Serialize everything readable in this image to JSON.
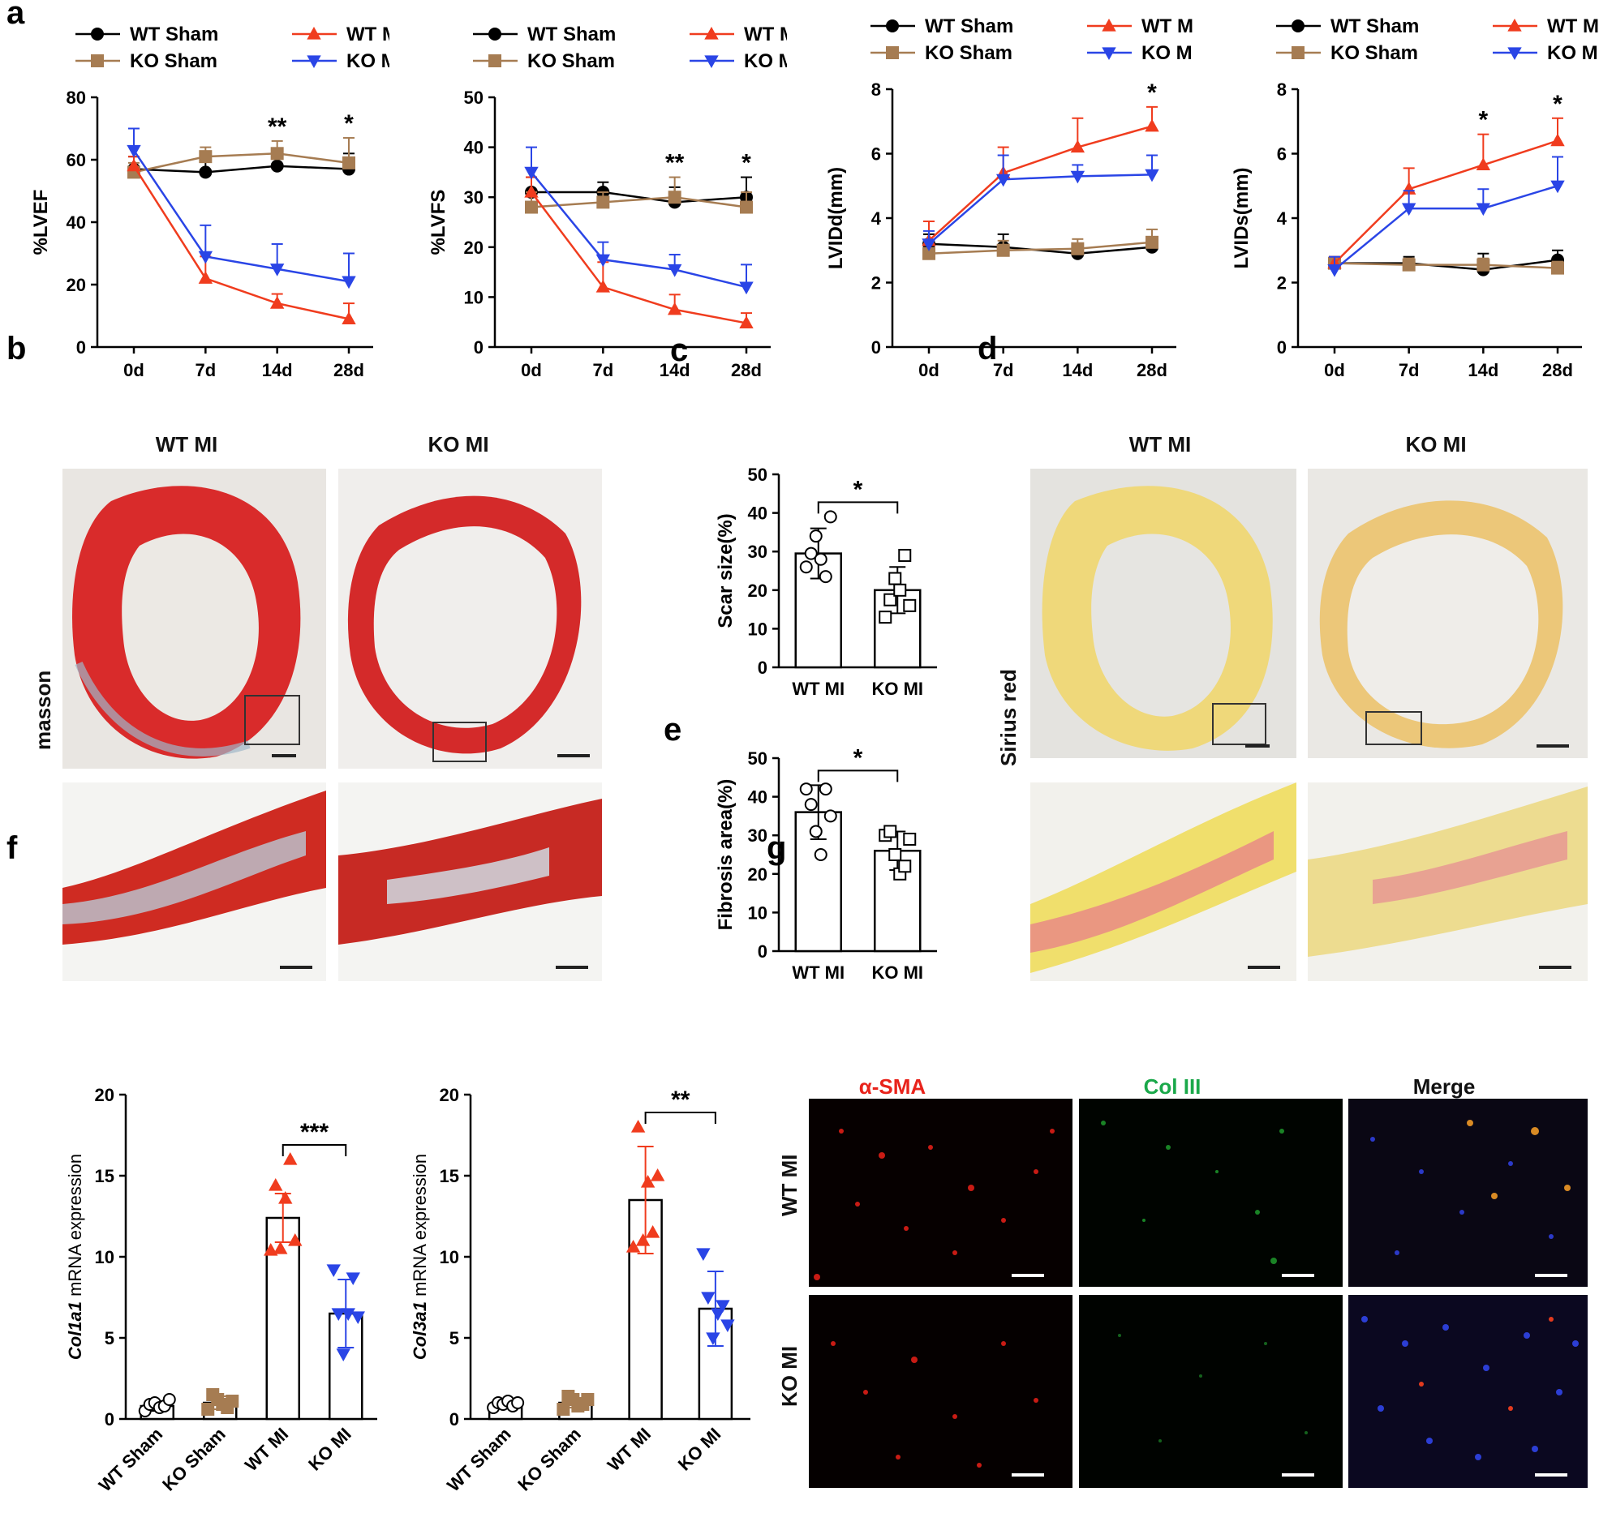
{
  "panel_labels": {
    "a": "a",
    "b": "b",
    "c": "c",
    "d": "d",
    "e": "e",
    "f": "f",
    "g": "g"
  },
  "legend": {
    "wt_sham": "WT Sham",
    "ko_sham": "KO Sham",
    "wt_mi": "WT MI",
    "ko_mi": "KO MI"
  },
  "colors": {
    "wt_sham": "#000000",
    "ko_sham": "#a67c52",
    "wt_mi": "#f03c1e",
    "ko_mi": "#2a45e6",
    "alpha_sma": "#e8231b",
    "col3": "#1aa84a"
  },
  "panel_b": {
    "col1": "WT MI",
    "col2": "KO MI",
    "row_label": "masson"
  },
  "panel_d": {
    "col1": "WT MI",
    "col2": "KO MI",
    "row_label": "Sirius red"
  },
  "panel_g": {
    "col1": "α-SMA",
    "col2": "Col III",
    "col3": "Merge",
    "row1": "WT MI",
    "row2": "KO MI"
  },
  "chart_data": [
    {
      "id": "lvef",
      "type": "line",
      "ylabel": "%LVEF",
      "ylim": [
        0,
        80
      ],
      "yticks": [
        0,
        20,
        40,
        60,
        80
      ],
      "categories": [
        "0d",
        "7d",
        "14d",
        "28d"
      ],
      "series": [
        {
          "name": "WT Sham",
          "values": [
            57,
            56,
            58,
            57
          ],
          "errors": [
            4,
            4,
            5,
            5
          ]
        },
        {
          "name": "KO Sham",
          "values": [
            56,
            61,
            62,
            59
          ],
          "errors": [
            3,
            3,
            4,
            8
          ]
        },
        {
          "name": "WT MI",
          "values": [
            58,
            22,
            14,
            9
          ],
          "errors": [
            3,
            7,
            3,
            5
          ]
        },
        {
          "name": "KO MI",
          "values": [
            63,
            29,
            25,
            21
          ],
          "errors": [
            7,
            10,
            8,
            9
          ]
        }
      ],
      "annotations": [
        {
          "x": "14d",
          "text": "**"
        },
        {
          "x": "28d",
          "text": "*"
        }
      ]
    },
    {
      "id": "lvfs",
      "type": "line",
      "ylabel": "%LVFS",
      "ylim": [
        0,
        50
      ],
      "yticks": [
        0,
        10,
        20,
        30,
        40,
        50
      ],
      "categories": [
        "0d",
        "7d",
        "14d",
        "28d"
      ],
      "series": [
        {
          "name": "WT Sham",
          "values": [
            31,
            31,
            29,
            30
          ],
          "errors": [
            3,
            2,
            3,
            4
          ]
        },
        {
          "name": "KO Sham",
          "values": [
            28,
            29,
            30,
            28
          ],
          "errors": [
            3,
            2,
            4,
            3
          ]
        },
        {
          "name": "WT MI",
          "values": [
            31,
            12,
            7.5,
            4.8
          ],
          "errors": [
            3,
            5,
            3,
            2
          ]
        },
        {
          "name": "KO MI",
          "values": [
            35,
            17.5,
            15.5,
            12
          ],
          "errors": [
            5,
            3.5,
            3,
            4.5
          ]
        }
      ],
      "annotations": [
        {
          "x": "14d",
          "text": "**"
        },
        {
          "x": "28d",
          "text": "*"
        }
      ]
    },
    {
      "id": "lvidd",
      "type": "line",
      "ylabel": "LVIDd(mm)",
      "ylim": [
        0,
        8
      ],
      "yticks": [
        0,
        2,
        4,
        6,
        8
      ],
      "categories": [
        "0d",
        "7d",
        "14d",
        "28d"
      ],
      "series": [
        {
          "name": "WT Sham",
          "values": [
            3.2,
            3.1,
            2.9,
            3.1
          ],
          "errors": [
            0.3,
            0.4,
            0.3,
            0.3
          ]
        },
        {
          "name": "KO Sham",
          "values": [
            2.9,
            3.0,
            3.05,
            3.25
          ],
          "errors": [
            0.3,
            0.3,
            0.3,
            0.4
          ]
        },
        {
          "name": "WT MI",
          "values": [
            3.3,
            5.4,
            6.2,
            6.85
          ],
          "errors": [
            0.6,
            0.8,
            0.9,
            0.6
          ]
        },
        {
          "name": "KO MI",
          "values": [
            3.2,
            5.2,
            5.3,
            5.35
          ],
          "errors": [
            0.4,
            0.75,
            0.35,
            0.6
          ]
        }
      ],
      "annotations": [
        {
          "x": "28d",
          "text": "*"
        }
      ]
    },
    {
      "id": "lvids",
      "type": "line",
      "ylabel": "LVIDs(mm)",
      "ylim": [
        0,
        8
      ],
      "yticks": [
        0,
        2,
        4,
        6,
        8
      ],
      "categories": [
        "0d",
        "7d",
        "14d",
        "28d"
      ],
      "series": [
        {
          "name": "WT Sham",
          "values": [
            2.6,
            2.6,
            2.4,
            2.7
          ],
          "errors": [
            0.2,
            0.2,
            0.5,
            0.3
          ]
        },
        {
          "name": "KO Sham",
          "values": [
            2.6,
            2.55,
            2.55,
            2.45
          ],
          "errors": [
            0.2,
            0.2,
            0.2,
            0.2
          ]
        },
        {
          "name": "WT MI",
          "values": [
            2.6,
            4.9,
            5.65,
            6.4
          ],
          "errors": [
            0.2,
            0.65,
            0.95,
            0.7
          ]
        },
        {
          "name": "KO MI",
          "values": [
            2.4,
            4.3,
            4.3,
            5.0
          ],
          "errors": [
            0.4,
            0.55,
            0.6,
            0.9
          ]
        }
      ],
      "annotations": [
        {
          "x": "14d",
          "text": "*"
        },
        {
          "x": "28d",
          "text": "*"
        }
      ]
    },
    {
      "id": "scar",
      "type": "bar",
      "ylabel": "Scar size(%)",
      "ylim": [
        0,
        50
      ],
      "yticks": [
        0,
        10,
        20,
        30,
        40,
        50
      ],
      "categories": [
        "WT MI",
        "KO MI"
      ],
      "values": [
        29.5,
        20
      ],
      "errors": [
        6.5,
        6
      ],
      "points": [
        [
          26,
          29.5,
          34,
          28,
          23.5,
          39
        ],
        [
          13,
          17.5,
          23,
          20,
          29,
          16
        ]
      ],
      "markers": [
        "circle",
        "square"
      ],
      "significance": "*"
    },
    {
      "id": "fibrosis",
      "type": "bar",
      "ylabel": "Fibrosis area(%)",
      "ylim": [
        0,
        50
      ],
      "yticks": [
        0,
        10,
        20,
        30,
        40,
        50
      ],
      "categories": [
        "WT MI",
        "KO MI"
      ],
      "values": [
        36,
        26
      ],
      "errors": [
        7,
        5
      ],
      "points": [
        [
          42,
          38,
          31,
          25,
          42,
          35
        ],
        [
          30,
          31,
          25,
          20,
          22,
          29
        ]
      ],
      "markers": [
        "circle",
        "square"
      ],
      "significance": "*"
    },
    {
      "id": "col1a1",
      "type": "bar",
      "ylabel_italic": "Col1a1",
      "ylabel": "mRNA expression",
      "ylim": [
        0,
        20
      ],
      "yticks": [
        0,
        5,
        10,
        15,
        20
      ],
      "categories": [
        "WT Sham",
        "KO Sham",
        "WT MI",
        "KO MI"
      ],
      "values": [
        0.8,
        1.0,
        12.4,
        6.5
      ],
      "errors": [
        0.3,
        0.4,
        1.5,
        2.1
      ],
      "points": [
        [
          0.5,
          0.9,
          1.0,
          0.7,
          0.8,
          1.2
        ],
        [
          0.6,
          1.5,
          1.2,
          0.9,
          0.7,
          1.1
        ],
        [
          10.4,
          14.4,
          10.5,
          13.6,
          16.0,
          11.0
        ],
        [
          9.2,
          6.5,
          4.0,
          6.5,
          8.7,
          6.3
        ]
      ],
      "markers": [
        "circle",
        "square",
        "triangle",
        "triangle-down"
      ],
      "significance": "***"
    },
    {
      "id": "col3a1",
      "type": "bar",
      "ylabel_italic": "Col3a1",
      "ylabel": "mRNA expression",
      "ylim": [
        0,
        20
      ],
      "yticks": [
        0,
        5,
        10,
        15,
        20
      ],
      "categories": [
        "WT Sham",
        "KO Sham",
        "WT MI",
        "KO MI"
      ],
      "values": [
        0.9,
        1.0,
        13.5,
        6.8
      ],
      "errors": [
        0.2,
        0.3,
        3.3,
        2.3
      ],
      "points": [
        [
          0.7,
          1.0,
          0.9,
          1.1,
          0.8,
          1.0
        ],
        [
          0.6,
          1.4,
          1.2,
          0.8,
          0.9,
          1.2
        ],
        [
          10.6,
          18.0,
          11.0,
          14.6,
          11.5,
          15.0
        ],
        [
          10.2,
          7.5,
          5.0,
          6.5,
          7.0,
          5.8
        ]
      ],
      "markers": [
        "circle",
        "square",
        "triangle",
        "triangle-down"
      ],
      "significance": "**"
    }
  ]
}
